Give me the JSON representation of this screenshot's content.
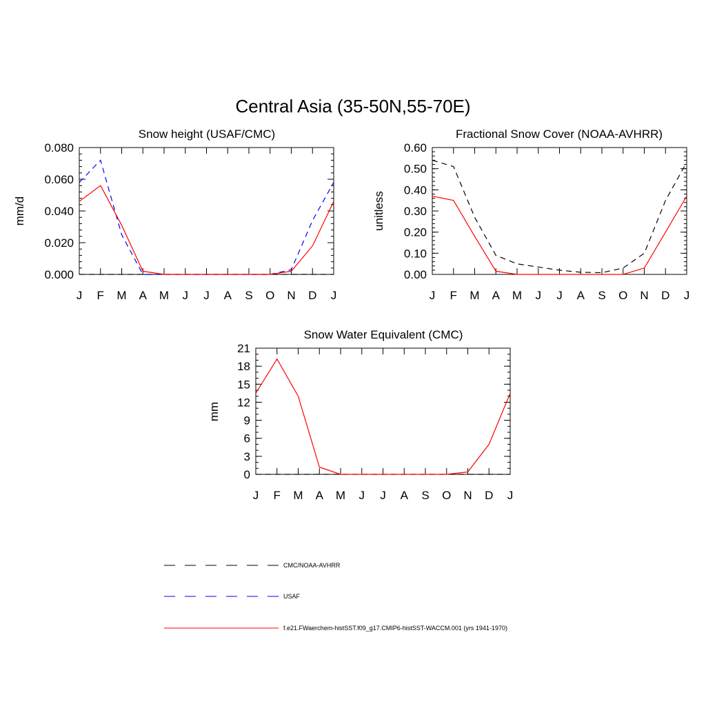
{
  "title": "Central Asia (35-50N,55-70E)",
  "colors": {
    "model": "#ff0000",
    "usaf": "#0000ff",
    "obs": "#000000"
  },
  "chart_data": [
    {
      "id": "snow-height",
      "type": "line",
      "title": "Snow height (USAF/CMC)",
      "ylabel": "mm/d",
      "xlabel": "",
      "categories": [
        "J",
        "F",
        "M",
        "A",
        "M",
        "J",
        "J",
        "A",
        "S",
        "O",
        "N",
        "D",
        "J"
      ],
      "ylim": [
        0,
        0.08
      ],
      "yticks": [
        0,
        0.02,
        0.04,
        0.06,
        0.08
      ],
      "ytick_labels": [
        "0.000",
        "0.020",
        "0.040",
        "0.060",
        "0.080"
      ],
      "yminor_step": 0.004,
      "series": [
        {
          "key": "obs",
          "name": "CMC/NOAA-AVHRR",
          "style": "dash-black",
          "values": [
            0,
            0,
            0,
            0,
            0,
            0,
            0,
            0,
            0,
            0,
            0,
            0,
            0
          ]
        },
        {
          "key": "usaf",
          "name": "USAF",
          "style": "dash-blue",
          "values": [
            0.058,
            0.072,
            0.025,
            0.0,
            0.0,
            0.0,
            0.0,
            0.0,
            0.0,
            0.0,
            0.003,
            0.034,
            0.058
          ]
        },
        {
          "key": "model",
          "name": "f.e21.FWaerchem-histSST.f09_g17.CMIP6-histSST-WACCM.001 (yrs 1941-1970)",
          "style": "solid-red",
          "values": [
            0.046,
            0.056,
            0.031,
            0.002,
            0.0,
            0.0,
            0.0,
            0.0,
            0.0,
            0.0,
            0.002,
            0.018,
            0.046
          ]
        }
      ]
    },
    {
      "id": "snow-cover",
      "type": "line",
      "title": "Fractional Snow Cover (NOAA-AVHRR)",
      "ylabel": "unitless",
      "xlabel": "",
      "categories": [
        "J",
        "F",
        "M",
        "A",
        "M",
        "J",
        "J",
        "A",
        "S",
        "O",
        "N",
        "D",
        "J"
      ],
      "ylim": [
        0,
        0.6
      ],
      "yticks": [
        0,
        0.1,
        0.2,
        0.3,
        0.4,
        0.5,
        0.6
      ],
      "ytick_labels": [
        "0.00",
        "0.10",
        "0.20",
        "0.30",
        "0.40",
        "0.50",
        "0.60"
      ],
      "yminor_step": 0.02,
      "series": [
        {
          "key": "obs",
          "name": "CMC/NOAA-AVHRR",
          "style": "dash-black",
          "values": [
            0.54,
            0.51,
            0.27,
            0.09,
            0.05,
            0.035,
            0.02,
            0.01,
            0.008,
            0.03,
            0.1,
            0.35,
            0.53
          ]
        },
        {
          "key": "model",
          "name": "f.e21.FWaerchem-histSST.f09_g17.CMIP6-histSST-WACCM.001 (yrs 1941-1970)",
          "style": "solid-red",
          "values": [
            0.37,
            0.35,
            0.18,
            0.015,
            0.0,
            0.0,
            0.0,
            0.0,
            0.0,
            0.0,
            0.03,
            0.2,
            0.37
          ]
        }
      ]
    },
    {
      "id": "swe",
      "type": "line",
      "title": "Snow Water Equivalent (CMC)",
      "ylabel": "mm",
      "xlabel": "",
      "categories": [
        "J",
        "F",
        "M",
        "A",
        "M",
        "J",
        "J",
        "A",
        "S",
        "O",
        "N",
        "D",
        "J"
      ],
      "ylim": [
        0,
        21
      ],
      "yticks": [
        0,
        3,
        6,
        9,
        12,
        15,
        18,
        21
      ],
      "ytick_labels": [
        "0",
        "3",
        "6",
        "9",
        "12",
        "15",
        "18",
        "21"
      ],
      "yminor_step": 1,
      "series": [
        {
          "key": "obs",
          "name": "CMC/NOAA-AVHRR",
          "style": "dash-black",
          "values": [
            0,
            0,
            0,
            0,
            0,
            0,
            0,
            0,
            0,
            0,
            0,
            0,
            0
          ]
        },
        {
          "key": "model",
          "name": "f.e21.FWaerchem-histSST.f09_g17.CMIP6-histSST-WACCM.001 (yrs 1941-1970)",
          "style": "solid-red",
          "values": [
            13.5,
            19.2,
            13.0,
            1.2,
            0.0,
            0.0,
            0.0,
            0.0,
            0.0,
            0.0,
            0.4,
            5.0,
            13.5
          ]
        }
      ]
    }
  ],
  "legend": [
    {
      "key": "obs",
      "label": "CMC/NOAA-AVHRR",
      "style": "dash-black"
    },
    {
      "key": "usaf",
      "label": "USAF",
      "style": "dash-blue"
    },
    {
      "key": "model",
      "label": "f.e21.FWaerchem-histSST.f09_g17.CMIP6-histSST-WACCM.001 (yrs 1941-1970)",
      "style": "solid-red"
    }
  ]
}
